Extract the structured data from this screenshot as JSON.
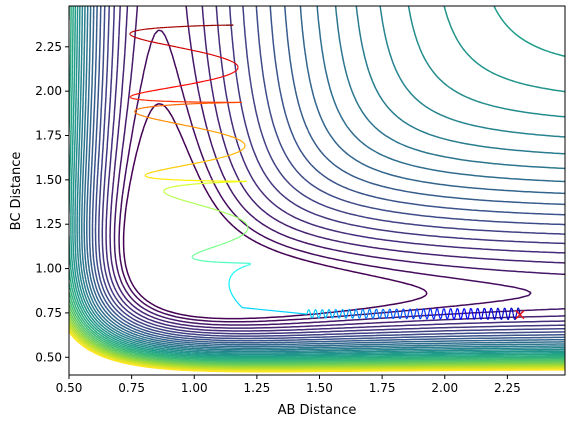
{
  "chart_data": {
    "type": "contour",
    "xlabel": "AB Distance",
    "ylabel": "BC Distance",
    "xlim": [
      0.5,
      2.48
    ],
    "ylim": [
      0.4,
      2.48
    ],
    "x_ticks": [
      0.5,
      0.75,
      1.0,
      1.25,
      1.5,
      1.75,
      2.0,
      2.25
    ],
    "y_ticks": [
      0.5,
      0.75,
      1.0,
      1.25,
      1.5,
      1.75,
      2.0,
      2.25
    ],
    "x_tick_labels": [
      "0.50",
      "0.75",
      "1.00",
      "1.25",
      "1.50",
      "1.75",
      "2.00",
      "2.25"
    ],
    "y_tick_labels": [
      "0.50",
      "0.75",
      "1.00",
      "1.25",
      "1.50",
      "1.75",
      "2.00",
      "2.25"
    ],
    "contour_colormap": "viridis",
    "contour_levels": 32,
    "grid": false,
    "legend": false,
    "trajectory": {
      "start": [
        2.3,
        0.74
      ],
      "start_marker": "x",
      "start_color": "#e41a1c",
      "colormap": "jet (blue to red over time)",
      "description": "Atom A approaches BC from AB=2.30, BC oscillates near 0.74, reacts near AB≈1.45, then BC separates while AB oscillates between ~0.75 and ~1.2"
    }
  }
}
